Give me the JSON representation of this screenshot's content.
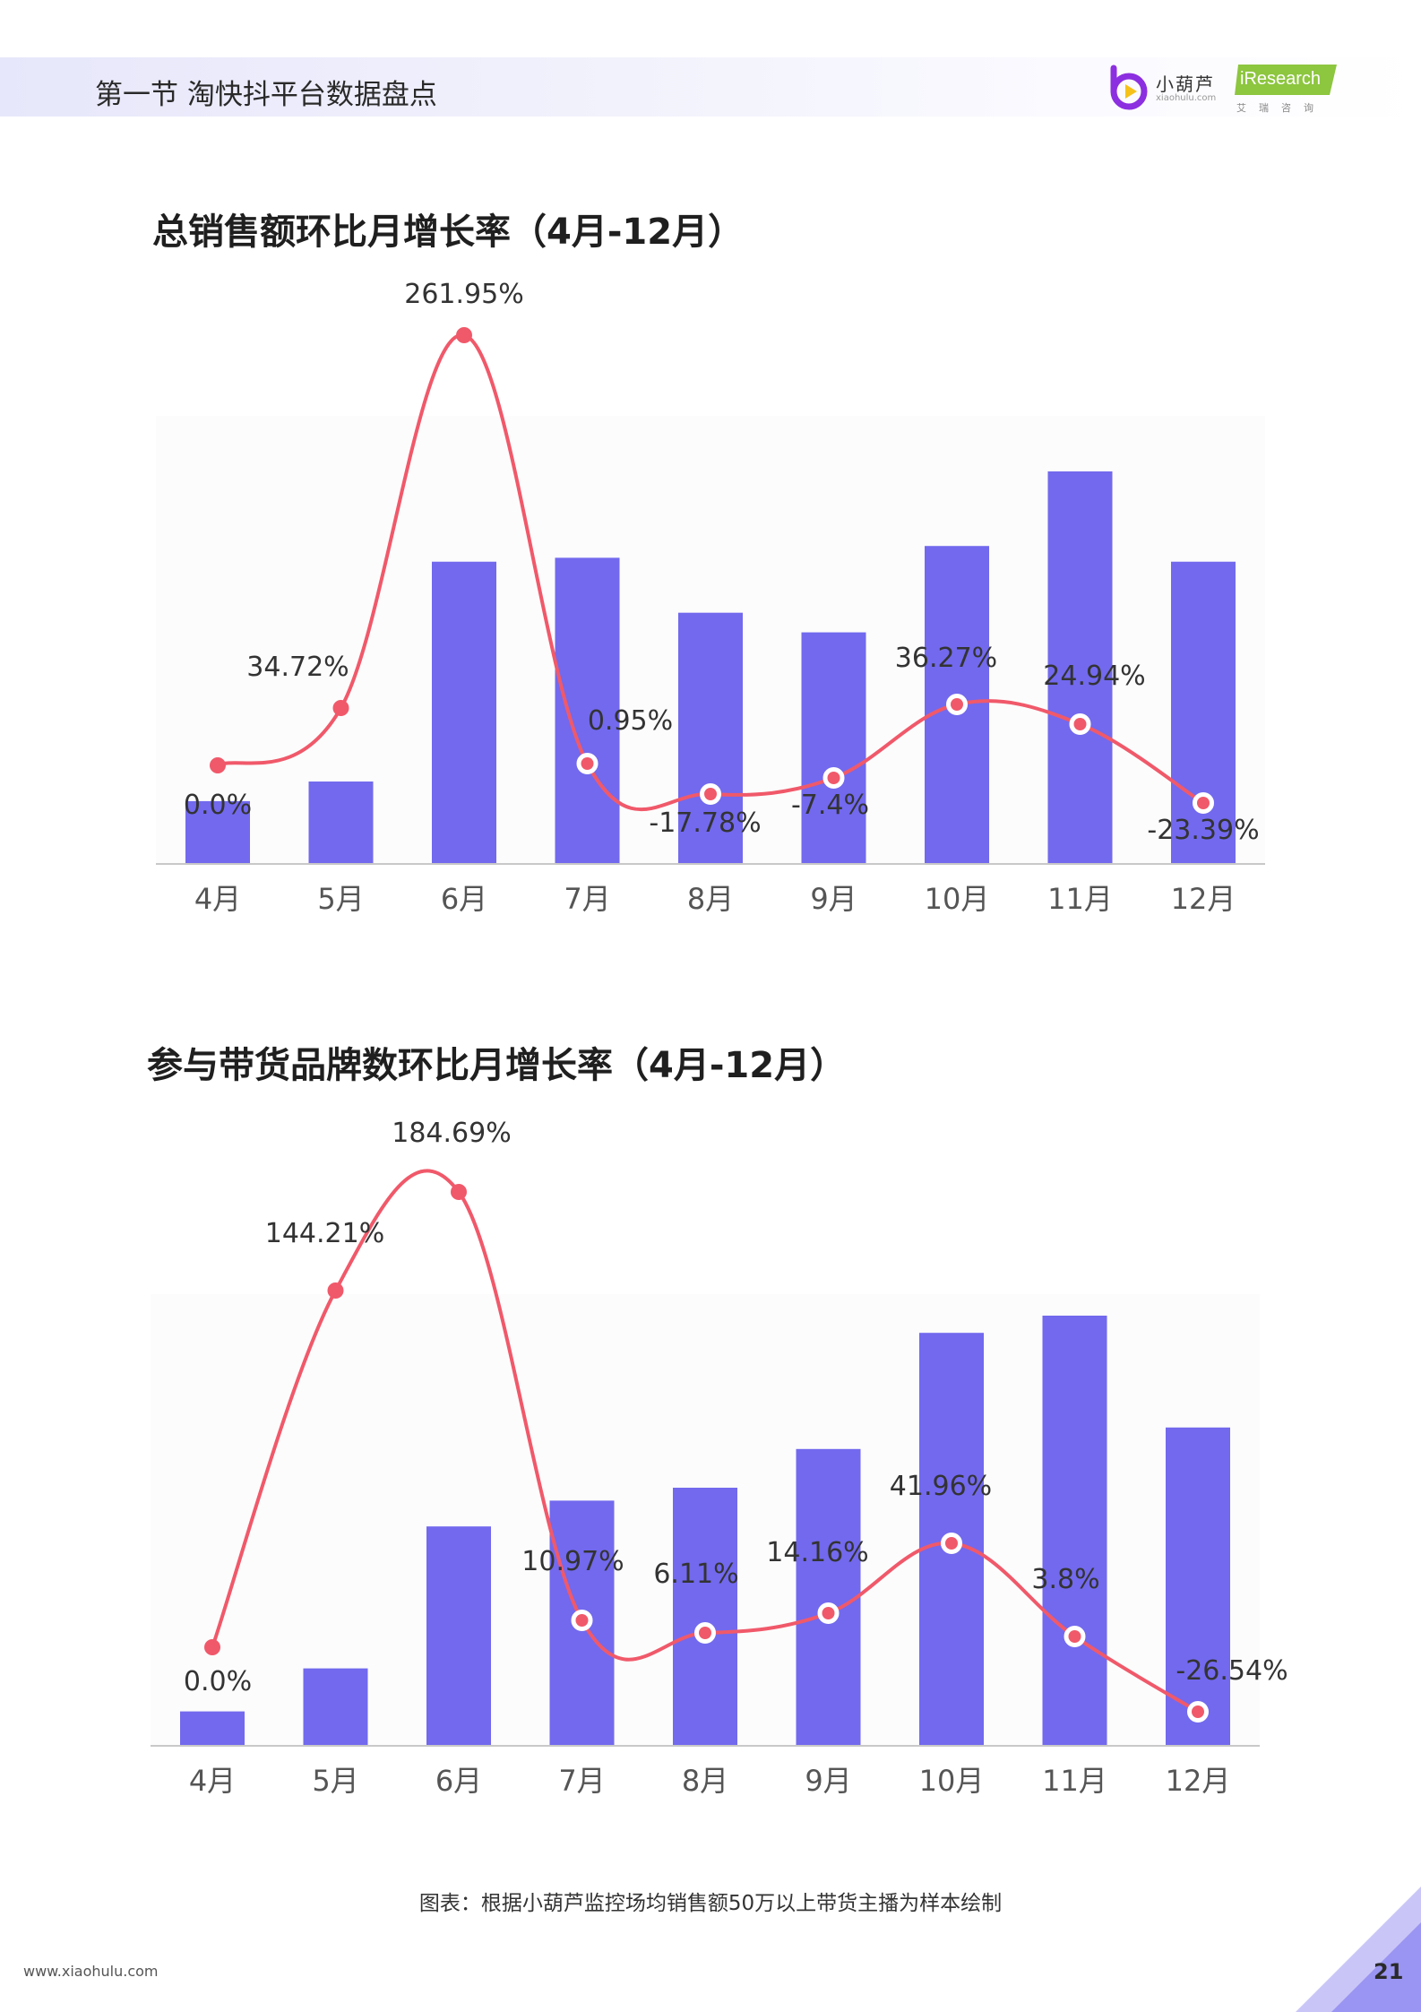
{
  "header": {
    "section_title": "第一节 淘快抖平台数据盘点",
    "logo_name": "小葫芦",
    "logo_url": "xiaohulu.com",
    "partner_logo": "iResearch",
    "partner_sub": "艾瑞咨询"
  },
  "colors": {
    "bar": "#7269ee",
    "line": "#f0596a",
    "plot_bg": "#fcfcfc",
    "axis": "#c8c8c8"
  },
  "chart_data": [
    {
      "type": "bar+line",
      "title": "总销售额环比月增长率（4月-12月）",
      "categories": [
        "4月",
        "5月",
        "6月",
        "7月",
        "8月",
        "9月",
        "10月",
        "11月",
        "12月"
      ],
      "bar_values": [
        0.16,
        0.21,
        0.77,
        0.78,
        0.64,
        0.59,
        0.81,
        1.0,
        0.77
      ],
      "series": [
        {
          "values": [
            0.0,
            34.72,
            261.95,
            0.95,
            -17.78,
            -7.4,
            36.27,
            24.94,
            -23.39
          ]
        }
      ],
      "labels": [
        "0.0%",
        "34.72%",
        "261.95%",
        "0.95%",
        "-17.78%",
        "-7.4%",
        "36.27%",
        "24.94%",
        "-23.39%"
      ]
    },
    {
      "type": "bar+line",
      "title": "参与带货品牌数环比月增长率（4月-12月）",
      "categories": [
        "4月",
        "5月",
        "6月",
        "7月",
        "8月",
        "9月",
        "10月",
        "11月",
        "12月"
      ],
      "bar_values": [
        0.08,
        0.18,
        0.51,
        0.57,
        0.6,
        0.69,
        0.96,
        1.0,
        0.74
      ],
      "series": [
        {
          "values": [
            0.0,
            144.21,
            184.69,
            10.97,
            6.11,
            14.16,
            41.96,
            3.8,
            -26.54
          ]
        }
      ],
      "labels": [
        "0.0%",
        "144.21%",
        "184.69%",
        "10.97%",
        "6.11%",
        "14.16%",
        "41.96%",
        "3.8%",
        "-26.54%"
      ]
    }
  ],
  "caption": "图表：根据小葫芦监控场均销售额50万以上带货主播为样本绘制",
  "footer_url": "www.xiaohulu.com",
  "page_number": "21"
}
